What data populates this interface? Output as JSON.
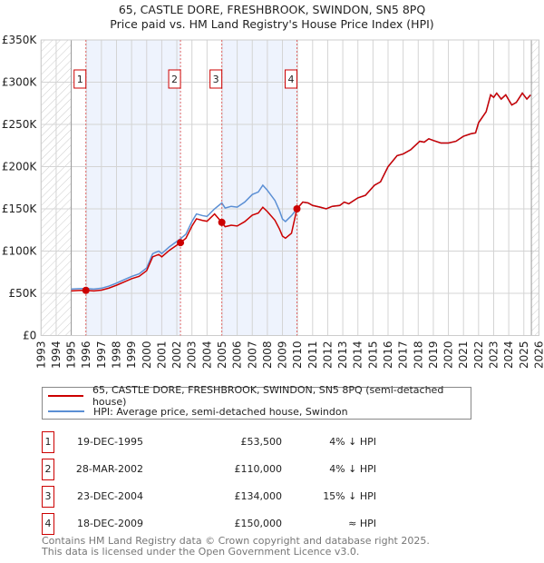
{
  "chart_data": {
    "type": "line",
    "title": "65, CASTLE DORE, FRESHBROOK, SWINDON, SN5 8PQ",
    "subtitle": "Price paid vs. HM Land Registry's House Price Index (HPI)",
    "xlim": [
      1993,
      2026
    ],
    "ylim": [
      0,
      350000
    ],
    "y_ticks": [
      {
        "v": 0,
        "label": "£0"
      },
      {
        "v": 50000,
        "label": "£50K"
      },
      {
        "v": 100000,
        "label": "£100K"
      },
      {
        "v": 150000,
        "label": "£150K"
      },
      {
        "v": 200000,
        "label": "£200K"
      },
      {
        "v": 250000,
        "label": "£250K"
      },
      {
        "v": 300000,
        "label": "£300K"
      },
      {
        "v": 350000,
        "label": "£350K"
      }
    ],
    "x_ticks": [
      "1993",
      "1994",
      "1995",
      "1996",
      "1997",
      "1998",
      "1999",
      "2000",
      "2001",
      "2002",
      "2003",
      "2004",
      "2005",
      "2006",
      "2007",
      "2008",
      "2009",
      "2010",
      "2011",
      "2012",
      "2013",
      "2014",
      "2015",
      "2016",
      "2017",
      "2018",
      "2019",
      "2020",
      "2021",
      "2022",
      "2023",
      "2024",
      "2025",
      "2026"
    ],
    "grid": true,
    "no_data_ranges": [
      [
        1993,
        1995
      ],
      [
        2025.5,
        2026
      ]
    ],
    "shaded_ranges": [
      [
        1995.97,
        2002.24
      ],
      [
        2004.98,
        2009.96
      ]
    ],
    "series": [
      {
        "name": "HPI: Average price, semi-detached house, Swindon",
        "color": "#5b8fd4",
        "x": [
          1995.0,
          1995.5,
          1995.97,
          1996.5,
          1997.0,
          1997.5,
          1998.0,
          1998.5,
          1999.0,
          1999.5,
          2000.0,
          2000.4,
          2000.8,
          2001.0,
          2001.5,
          2002.24,
          2002.6,
          2003.0,
          2003.3,
          2003.7,
          2004.0,
          2004.5,
          2004.98,
          2005.2,
          2005.6,
          2006.0,
          2006.5,
          2007.0,
          2007.4,
          2007.7,
          2008.0,
          2008.5,
          2008.8,
          2009.0,
          2009.2,
          2009.6,
          2009.96,
          2010.35,
          2010.7,
          2011.0,
          2011.5,
          2011.9,
          2012.3,
          2012.8,
          2013.1,
          2013.4,
          2014.0,
          2014.5,
          2015.1,
          2015.5,
          2016.0,
          2016.6,
          2017.0,
          2017.5,
          2018.1,
          2018.4,
          2018.7,
          2019.0,
          2019.5,
          2020.0,
          2020.5,
          2021.0,
          2021.5,
          2021.8,
          2022.0,
          2022.5,
          2022.8,
          2023.0,
          2023.2,
          2023.5,
          2023.8,
          2024.2,
          2024.5,
          2024.9,
          2025.2,
          2025.45
        ],
        "y": [
          55000,
          55500,
          55700,
          55000,
          56000,
          58500,
          62000,
          66000,
          70000,
          73000,
          80000,
          97000,
          100000,
          97000,
          105000,
          114600,
          120000,
          135000,
          144000,
          142000,
          141000,
          150000,
          157000,
          151000,
          153000,
          152000,
          158000,
          167000,
          170000,
          178000,
          172000,
          160000,
          148000,
          138000,
          135000,
          142000,
          150000,
          158000,
          157000,
          154000,
          152000,
          150000,
          153000,
          154000,
          158000,
          156000,
          163000,
          166000,
          178000,
          182000,
          200000,
          213000,
          215000,
          220000,
          230000,
          229000,
          233000,
          231000,
          228000,
          228000,
          230000,
          236000,
          239000,
          240000,
          252000,
          265000,
          285000,
          282000,
          287000,
          280000,
          285000,
          273000,
          276000,
          287000,
          280000,
          285000
        ]
      },
      {
        "name": "65, CASTLE DORE, FRESHBROOK, SWINDON, SN5 8PQ (semi-detached house)",
        "color": "#cc0000"
      }
    ],
    "sales": [
      {
        "n": "1",
        "x": 1995.97,
        "price": 53500
      },
      {
        "n": "2",
        "x": 2002.24,
        "price": 110000
      },
      {
        "n": "3",
        "x": 2004.98,
        "price": 134000
      },
      {
        "n": "4",
        "x": 2009.96,
        "price": 150000
      }
    ]
  },
  "legend": {
    "property": "65, CASTLE DORE, FRESHBROOK, SWINDON, SN5 8PQ (semi-detached house)",
    "hpi": "HPI: Average price, semi-detached house, Swindon"
  },
  "transactions": [
    {
      "n": "1",
      "date": "19-DEC-1995",
      "price": "£53,500",
      "hpi": "4% ↓ HPI"
    },
    {
      "n": "2",
      "date": "28-MAR-2002",
      "price": "£110,000",
      "hpi": "4% ↓ HPI"
    },
    {
      "n": "3",
      "date": "23-DEC-2004",
      "price": "£134,000",
      "hpi": "15% ↓ HPI"
    },
    {
      "n": "4",
      "date": "18-DEC-2009",
      "price": "£150,000",
      "hpi": "≈ HPI"
    }
  ],
  "footer": {
    "line1": "Contains HM Land Registry data © Crown copyright and database right 2025.",
    "line2": "This data is licensed under the Open Government Licence v3.0."
  }
}
